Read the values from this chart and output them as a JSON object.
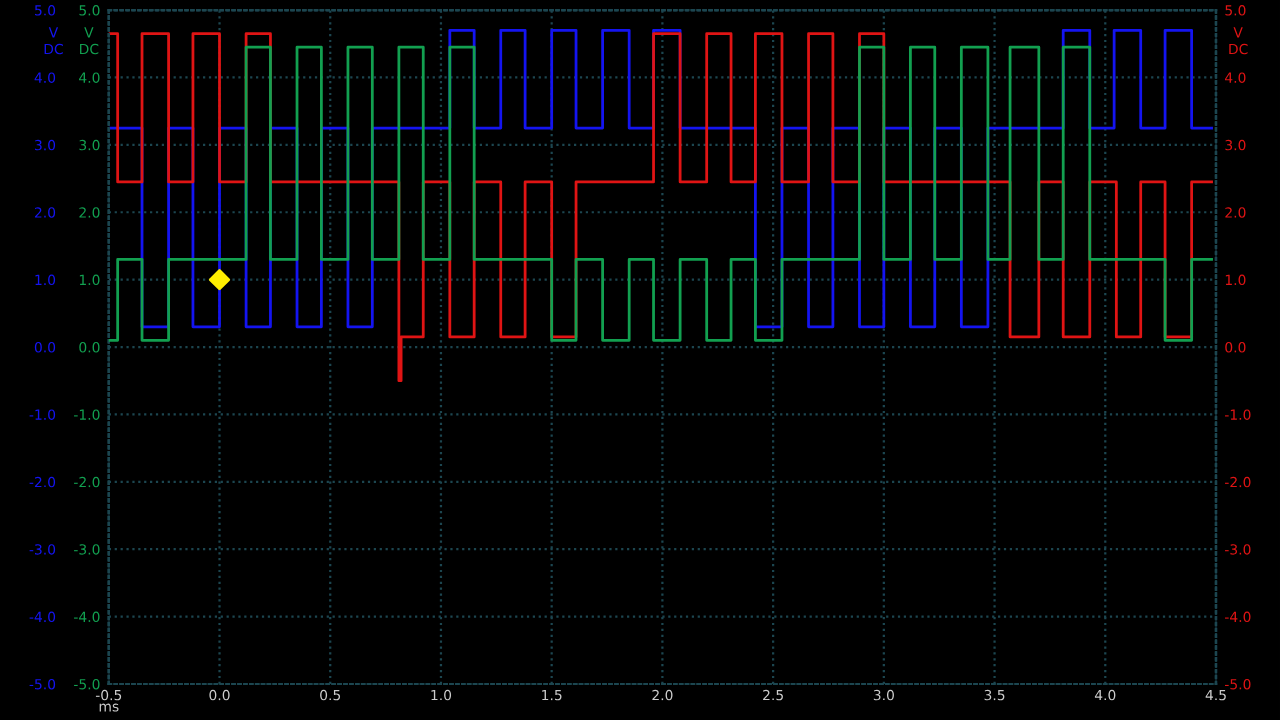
{
  "chart_data": {
    "type": "step",
    "xlabel": "ms",
    "ylabel": "V DC",
    "y2label": "V DC",
    "y3label": "V DC",
    "xlim": [
      -0.5,
      4.5
    ],
    "xticks": [
      {
        "value": -0.5,
        "label": "-0.5"
      },
      {
        "value": 0,
        "label": "0.0"
      },
      {
        "value": 0.5,
        "label": "0.5"
      },
      {
        "value": 1,
        "label": "1.0"
      },
      {
        "value": 1.5,
        "label": "1.5"
      },
      {
        "value": 2,
        "label": "2.0"
      },
      {
        "value": 2.5,
        "label": "2.5"
      },
      {
        "value": 3,
        "label": "3.0"
      },
      {
        "value": 3.5,
        "label": "3.5"
      },
      {
        "value": 4,
        "label": "4.0"
      },
      {
        "value": 4.5,
        "label": "4.5"
      }
    ],
    "ylim": [
      -5,
      5
    ],
    "yticks": [
      {
        "value": -5,
        "label": "-5.0"
      },
      {
        "value": -4,
        "label": "-4.0"
      },
      {
        "value": -3,
        "label": "-3.0"
      },
      {
        "value": -2,
        "label": "-2.0"
      },
      {
        "value": -1,
        "label": "-1.0"
      },
      {
        "value": 0,
        "label": "0.0"
      },
      {
        "value": 1,
        "label": "1.0"
      },
      {
        "value": 2,
        "label": "2.0"
      },
      {
        "value": 3,
        "label": "3.0"
      },
      {
        "value": 4,
        "label": "4.0"
      },
      {
        "value": 5,
        "label": "5.0"
      }
    ],
    "y2lim": [
      -5,
      5
    ],
    "y2ticks": [
      {
        "value": -5,
        "label": "-5.0"
      },
      {
        "value": -4,
        "label": "-4.0"
      },
      {
        "value": -3,
        "label": "-3.0"
      },
      {
        "value": -2,
        "label": "-2.0"
      },
      {
        "value": -1,
        "label": "-1.0"
      },
      {
        "value": 0,
        "label": "0.0"
      },
      {
        "value": 1,
        "label": "1.0"
      },
      {
        "value": 2,
        "label": "2.0"
      },
      {
        "value": 3,
        "label": "3.0"
      },
      {
        "value": 4,
        "label": "4.0"
      },
      {
        "value": 5,
        "label": "5.0"
      }
    ],
    "y3lim": [
      -5,
      5
    ],
    "y3ticks": [
      {
        "value": -5,
        "label": "-5.0"
      },
      {
        "value": -4,
        "label": "-4.0"
      },
      {
        "value": -3,
        "label": "-3.0"
      },
      {
        "value": -2,
        "label": "-2.0"
      },
      {
        "value": -1,
        "label": "-1.0"
      },
      {
        "value": 0,
        "label": "0.0"
      },
      {
        "value": 1,
        "label": "1.0"
      },
      {
        "value": 2,
        "label": "2.0"
      },
      {
        "value": 3,
        "label": "3.0"
      },
      {
        "value": 4,
        "label": "4.0"
      },
      {
        "value": 5,
        "label": "5.0"
      }
    ],
    "grid": true,
    "series": [
      {
        "axis": "y",
        "color": "#1414f0",
        "x": [
          -0.5,
          -0.35,
          -0.23,
          -0.12,
          0.0,
          0.12,
          0.23,
          0.35,
          0.46,
          0.58,
          0.69,
          1.04,
          1.15,
          1.27,
          1.38,
          1.5,
          1.61,
          1.73,
          1.85,
          1.96,
          2.08,
          2.42,
          2.54,
          2.66,
          2.77,
          2.89,
          3.0,
          3.12,
          3.23,
          3.35,
          3.47,
          3.81,
          3.93,
          4.04,
          4.16,
          4.27,
          4.39,
          4.48
        ],
        "values": [
          3.25,
          0.3,
          3.25,
          0.3,
          3.25,
          0.3,
          3.25,
          0.3,
          3.25,
          0.3,
          3.25,
          4.7,
          3.25,
          4.7,
          3.25,
          4.7,
          3.25,
          4.7,
          3.25,
          4.7,
          3.25,
          0.3,
          3.25,
          0.3,
          3.25,
          0.3,
          3.25,
          0.3,
          3.25,
          0.3,
          3.25,
          4.7,
          3.25,
          4.7,
          3.25,
          4.7,
          3.25,
          3.25
        ]
      },
      {
        "axis": "y3",
        "color": "#12a050",
        "x": [
          -0.5,
          -0.46,
          -0.35,
          -0.23,
          0.12,
          0.23,
          0.35,
          0.46,
          0.58,
          0.69,
          0.81,
          0.92,
          1.04,
          1.15,
          1.5,
          1.61,
          1.73,
          1.85,
          1.96,
          2.08,
          2.2,
          2.31,
          2.42,
          2.54,
          2.89,
          3.0,
          3.12,
          3.23,
          3.35,
          3.47,
          3.57,
          3.7,
          3.81,
          3.93,
          4.27,
          4.39,
          4.48
        ],
        "values": [
          0.1,
          1.3,
          0.1,
          1.3,
          4.45,
          1.3,
          4.45,
          1.3,
          4.45,
          1.3,
          4.45,
          1.3,
          4.45,
          1.3,
          0.1,
          1.3,
          0.1,
          1.3,
          0.1,
          1.3,
          0.1,
          1.3,
          0.1,
          1.3,
          4.45,
          1.3,
          4.45,
          1.3,
          4.45,
          1.3,
          4.45,
          1.3,
          4.45,
          1.3,
          0.1,
          1.3,
          1.3
        ]
      },
      {
        "axis": "y2",
        "color": "#e01414",
        "x": [
          -0.5,
          -0.46,
          -0.35,
          -0.23,
          -0.12,
          0.0,
          0.12,
          0.23,
          0.81,
          0.82,
          0.92,
          1.04,
          1.15,
          1.27,
          1.38,
          1.5,
          1.61,
          1.96,
          2.08,
          2.2,
          2.31,
          2.42,
          2.54,
          2.66,
          2.77,
          2.89,
          3.0,
          3.57,
          3.7,
          3.81,
          3.93,
          4.05,
          4.16,
          4.27,
          4.39,
          4.48
        ],
        "values": [
          4.65,
          2.45,
          4.65,
          2.45,
          4.65,
          2.45,
          4.65,
          2.45,
          -0.5,
          0.15,
          2.45,
          0.15,
          2.45,
          0.15,
          2.45,
          0.15,
          2.45,
          4.65,
          2.45,
          4.65,
          2.45,
          4.65,
          2.45,
          4.65,
          2.45,
          4.65,
          2.45,
          0.15,
          2.45,
          0.15,
          2.45,
          0.15,
          2.45,
          0.15,
          2.45,
          2.45
        ]
      },
      {
        "type": "scatter",
        "axis": "y",
        "marker": "diamond",
        "color": "#ffee00",
        "x": [
          0.0
        ],
        "values": [
          1.0
        ]
      }
    ]
  }
}
